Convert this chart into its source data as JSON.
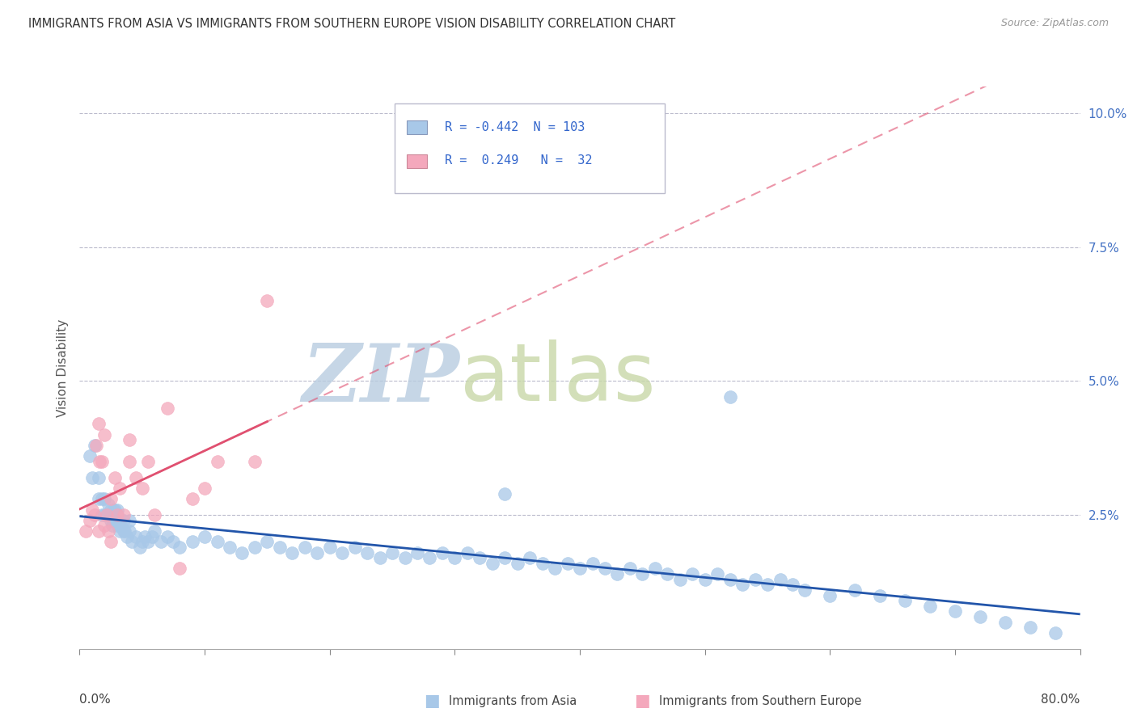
{
  "title": "IMMIGRANTS FROM ASIA VS IMMIGRANTS FROM SOUTHERN EUROPE VISION DISABILITY CORRELATION CHART",
  "source": "Source: ZipAtlas.com",
  "ylabel": "Vision Disability",
  "xlim": [
    0.0,
    80.0
  ],
  "ylim": [
    0.0,
    10.5
  ],
  "yticks": [
    2.5,
    5.0,
    7.5,
    10.0
  ],
  "ytick_labels": [
    "2.5%",
    "5.0%",
    "7.5%",
    "10.0%"
  ],
  "legend_R_asia": "-0.442",
  "legend_N_asia": "103",
  "legend_R_seurope": "0.249",
  "legend_N_seurope": "32",
  "color_asia": "#A8C8E8",
  "color_seurope": "#F4A8BC",
  "trendline_color_asia": "#2255AA",
  "trendline_color_seurope": "#E05070",
  "background_color": "#ffffff",
  "watermark_text1": "ZIP",
  "watermark_text2": "atlas",
  "watermark_color1": "#B8CCE0",
  "watermark_color2": "#C8D8A8",
  "grid_color": "#BBBBCC",
  "asia_x": [
    0.8,
    1.0,
    1.2,
    1.5,
    1.5,
    1.8,
    1.8,
    2.0,
    2.0,
    2.2,
    2.3,
    2.3,
    2.5,
    2.5,
    2.6,
    2.7,
    2.7,
    2.8,
    2.8,
    3.0,
    3.0,
    3.0,
    3.2,
    3.3,
    3.5,
    3.5,
    3.6,
    3.8,
    4.0,
    4.0,
    4.2,
    4.5,
    4.8,
    5.0,
    5.2,
    5.5,
    5.8,
    6.0,
    6.5,
    7.0,
    7.5,
    8.0,
    9.0,
    10.0,
    11.0,
    12.0,
    13.0,
    14.0,
    15.0,
    16.0,
    17.0,
    18.0,
    19.0,
    20.0,
    21.0,
    22.0,
    23.0,
    24.0,
    25.0,
    26.0,
    27.0,
    28.0,
    29.0,
    30.0,
    31.0,
    32.0,
    33.0,
    34.0,
    35.0,
    36.0,
    37.0,
    38.0,
    39.0,
    40.0,
    41.0,
    42.0,
    43.0,
    44.0,
    45.0,
    46.0,
    47.0,
    48.0,
    49.0,
    50.0,
    51.0,
    52.0,
    53.0,
    54.0,
    55.0,
    56.0,
    57.0,
    58.0,
    60.0,
    62.0,
    64.0,
    66.0,
    68.0,
    70.0,
    72.0,
    74.0,
    76.0,
    78.0,
    52.0,
    34.0
  ],
  "asia_y": [
    3.6,
    3.2,
    3.8,
    2.8,
    3.2,
    2.5,
    2.8,
    2.5,
    2.8,
    2.5,
    2.5,
    2.7,
    2.4,
    2.6,
    2.3,
    2.4,
    2.6,
    2.4,
    2.6,
    2.5,
    2.3,
    2.6,
    2.2,
    2.3,
    2.2,
    2.4,
    2.2,
    2.1,
    2.2,
    2.4,
    2.0,
    2.1,
    1.9,
    2.0,
    2.1,
    2.0,
    2.1,
    2.2,
    2.0,
    2.1,
    2.0,
    1.9,
    2.0,
    2.1,
    2.0,
    1.9,
    1.8,
    1.9,
    2.0,
    1.9,
    1.8,
    1.9,
    1.8,
    1.9,
    1.8,
    1.9,
    1.8,
    1.7,
    1.8,
    1.7,
    1.8,
    1.7,
    1.8,
    1.7,
    1.8,
    1.7,
    1.6,
    1.7,
    1.6,
    1.7,
    1.6,
    1.5,
    1.6,
    1.5,
    1.6,
    1.5,
    1.4,
    1.5,
    1.4,
    1.5,
    1.4,
    1.3,
    1.4,
    1.3,
    1.4,
    1.3,
    1.2,
    1.3,
    1.2,
    1.3,
    1.2,
    1.1,
    1.0,
    1.1,
    1.0,
    0.9,
    0.8,
    0.7,
    0.6,
    0.5,
    0.4,
    0.3,
    4.7,
    2.9
  ],
  "seurope_x": [
    0.5,
    0.8,
    1.0,
    1.2,
    1.3,
    1.5,
    1.5,
    1.6,
    1.8,
    2.0,
    2.0,
    2.2,
    2.3,
    2.5,
    2.5,
    2.8,
    3.0,
    3.2,
    3.5,
    4.0,
    4.0,
    4.5,
    5.0,
    5.5,
    6.0,
    7.0,
    8.0,
    9.0,
    10.0,
    11.0,
    14.0,
    15.0
  ],
  "seurope_y": [
    2.2,
    2.4,
    2.6,
    2.5,
    3.8,
    4.2,
    2.2,
    3.5,
    3.5,
    4.0,
    2.3,
    2.5,
    2.2,
    2.8,
    2.0,
    3.2,
    2.5,
    3.0,
    2.5,
    3.9,
    3.5,
    3.2,
    3.0,
    3.5,
    2.5,
    4.5,
    1.5,
    2.8,
    3.0,
    3.5,
    3.5,
    6.5
  ]
}
